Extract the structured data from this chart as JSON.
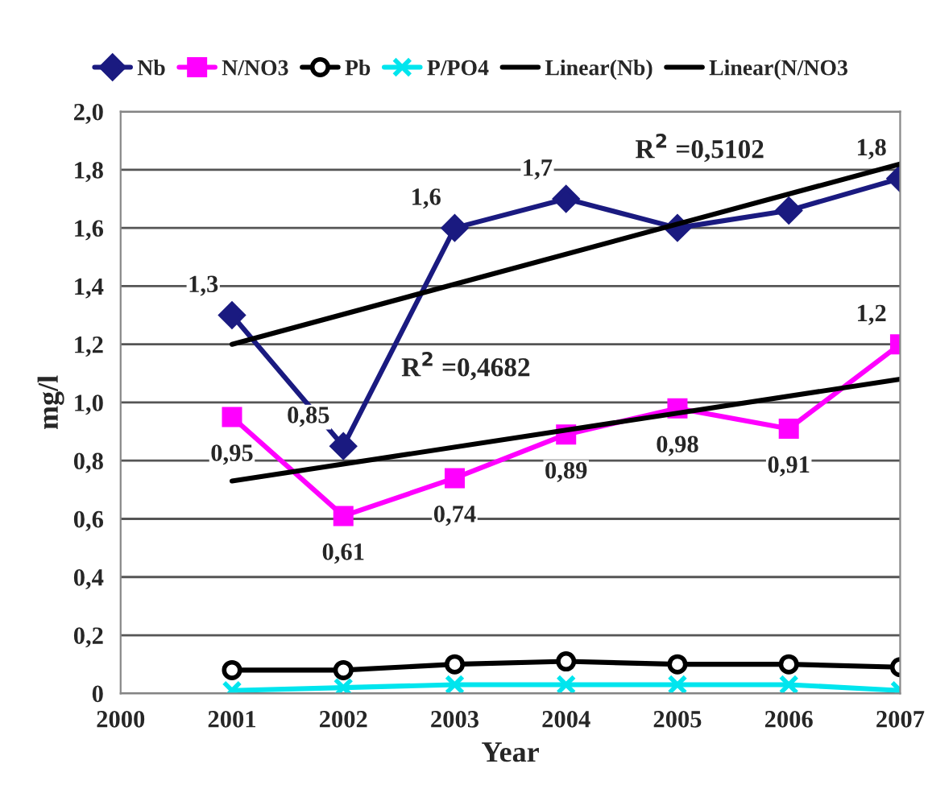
{
  "chart_data": {
    "type": "line",
    "xlabel": "Year",
    "ylabel": "mg/l",
    "xlim": [
      2000,
      2007
    ],
    "xticks": [
      2000,
      2001,
      2002,
      2003,
      2004,
      2005,
      2006,
      2007
    ],
    "ylim": [
      0,
      2.0
    ],
    "yticks": [
      0,
      {
        "value": 0.2,
        "label": "0,2"
      },
      {
        "value": 0.4,
        "label": "0,4"
      },
      {
        "value": 0.6,
        "label": "0,6"
      },
      {
        "value": 0.8,
        "label": "0,8"
      },
      {
        "value": 1.0,
        "label": "1,0"
      },
      {
        "value": 1.2,
        "label": "1,2"
      },
      {
        "value": 1.4,
        "label": "1,4"
      },
      {
        "value": 1.6,
        "label": "1,6"
      },
      {
        "value": 1.8,
        "label": "1,8"
      },
      {
        "value": 2.0,
        "label": "2,0"
      }
    ],
    "grid": "y",
    "legend": "top",
    "series": [
      {
        "name": "Nb",
        "color": "#1a1a80",
        "marker": "diamond",
        "x": [
          2001,
          2002,
          2003,
          2004,
          2005,
          2006,
          2007
        ],
        "values": [
          1.3,
          0.85,
          1.6,
          1.7,
          1.6,
          1.66,
          1.77
        ],
        "value_labels": [
          "1,3",
          "0,85",
          "1,6",
          "1,7",
          null,
          null,
          "1,8"
        ]
      },
      {
        "name": "N/NO3",
        "color": "#ff00ff",
        "marker": "square",
        "x": [
          2001,
          2002,
          2003,
          2004,
          2005,
          2006,
          2007
        ],
        "values": [
          0.95,
          0.61,
          0.74,
          0.89,
          0.98,
          0.91,
          1.2
        ],
        "value_labels": [
          "0,95",
          "0,61",
          "0,74",
          "0,89",
          "0,98",
          "0,91",
          "1,2"
        ]
      },
      {
        "name": "Pb",
        "color": "#000000",
        "marker": "circle",
        "x": [
          2001,
          2002,
          2003,
          2004,
          2005,
          2006,
          2007
        ],
        "values": [
          0.08,
          0.08,
          0.1,
          0.11,
          0.1,
          0.1,
          0.09
        ]
      },
      {
        "name": "P/PO4",
        "color": "#00e5ee",
        "marker": "cross",
        "x": [
          2001,
          2002,
          2003,
          2004,
          2005,
          2006,
          2007
        ],
        "values": [
          0.01,
          0.02,
          0.03,
          0.03,
          0.03,
          0.03,
          0.01
        ]
      },
      {
        "name": "Linear(Nb)",
        "color": "#000000",
        "marker": "none",
        "x": [
          2001,
          2007
        ],
        "values": [
          1.2,
          1.82
        ]
      },
      {
        "name": "Linear(N/NO3",
        "color": "#000000",
        "marker": "none",
        "x": [
          2001,
          2007
        ],
        "values": [
          0.73,
          1.08
        ]
      }
    ],
    "annotations": [
      "R$^{2}$ =0,5102",
      "R$^{2}$ =0,4682"
    ]
  }
}
